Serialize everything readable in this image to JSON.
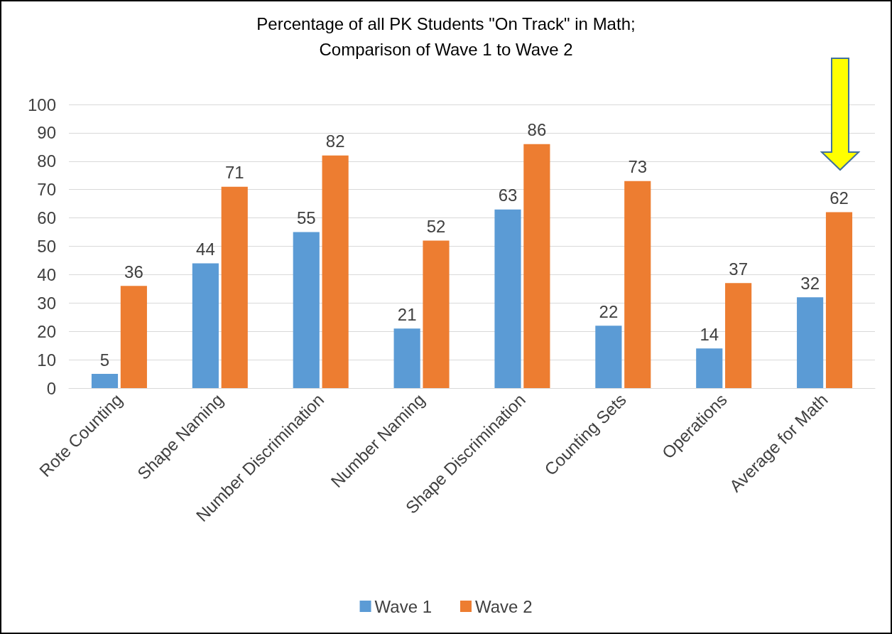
{
  "chart_data": {
    "type": "bar",
    "title": "Percentage of all PK Students \"On Track\" in Math;\nComparison of Wave 1 to Wave 2",
    "categories": [
      "Rote Counting",
      "Shape Naming",
      "Number Discrimination",
      "Number Naming",
      "Shape Discrimination",
      "Counting Sets",
      "Operations",
      "Average for Math"
    ],
    "series": [
      {
        "name": "Wave 1",
        "color": "#5b9bd5",
        "values": [
          5,
          44,
          55,
          21,
          63,
          22,
          14,
          32
        ]
      },
      {
        "name": "Wave 2",
        "color": "#ed7d31",
        "values": [
          36,
          71,
          82,
          52,
          86,
          73,
          37,
          62
        ]
      }
    ],
    "ylim": [
      0,
      100
    ],
    "yticks": [
      0,
      10,
      20,
      30,
      40,
      50,
      60,
      70,
      80,
      90,
      100
    ],
    "grid": "y",
    "legend": "bottom",
    "data_labels": true
  }
}
